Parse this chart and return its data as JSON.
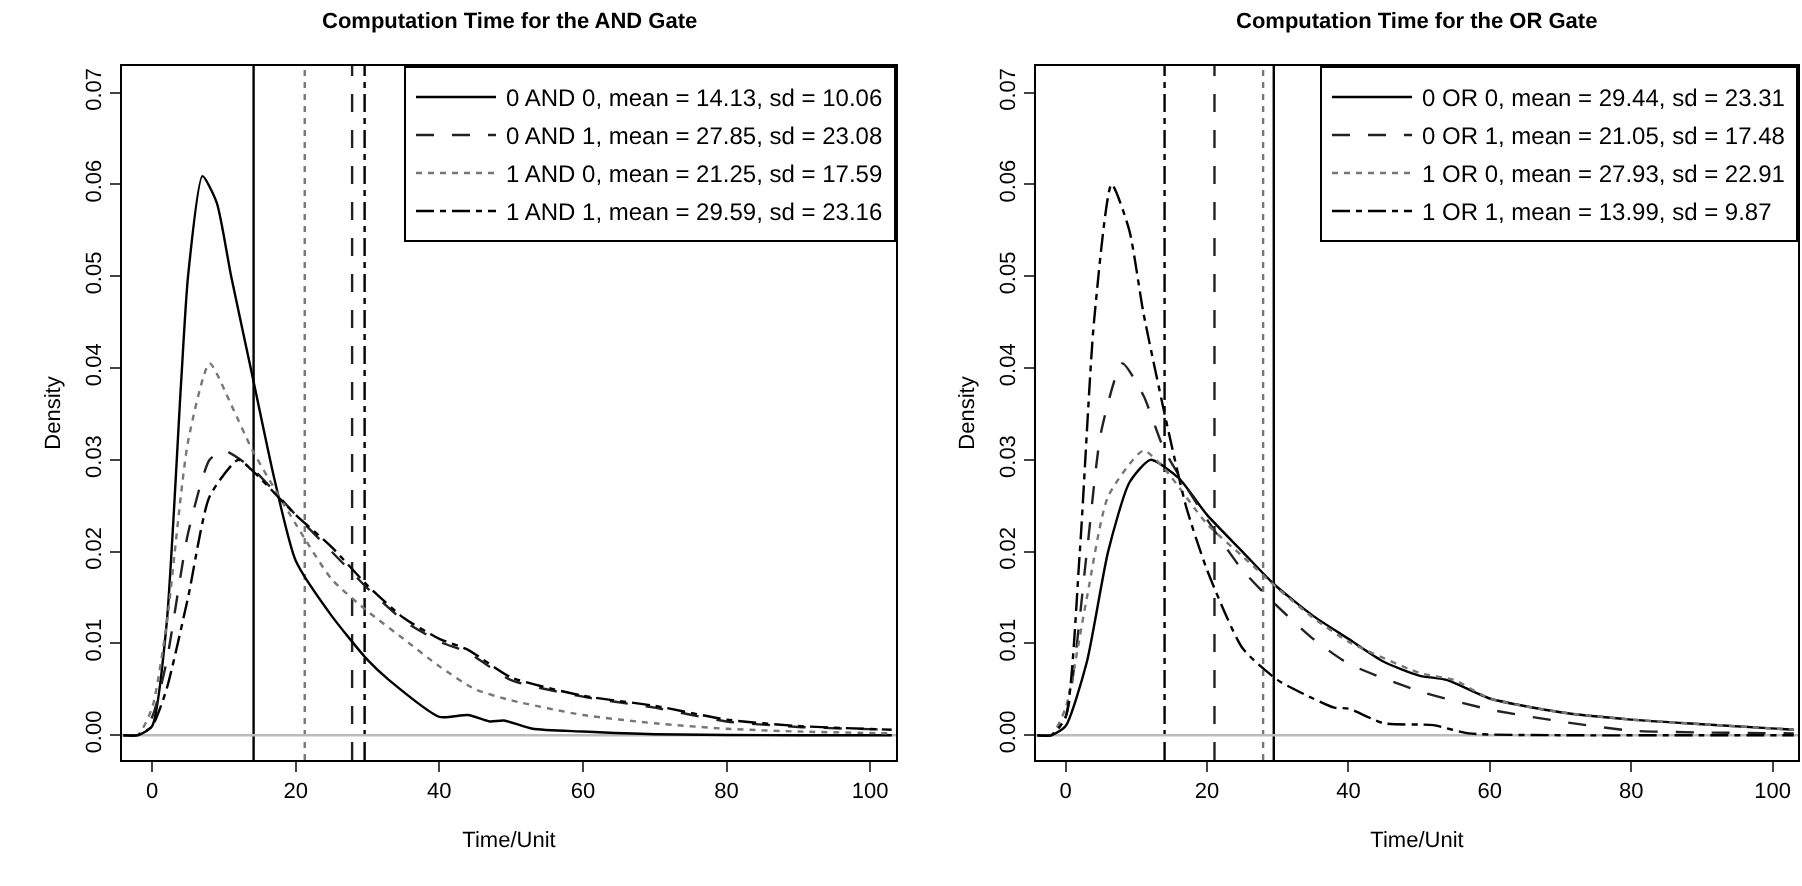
{
  "chart_data": [
    {
      "type": "line",
      "title": "Computation Time for the AND Gate",
      "xlabel": "Time/Unit",
      "ylabel": "Density",
      "legend": "top right",
      "grid": false,
      "xlim": [
        -4.2,
        103.6
      ],
      "ylim": [
        -0.0027,
        0.0729
      ],
      "xticks": [
        0,
        20,
        40,
        60,
        80,
        100
      ],
      "yticks": [
        {
          "value": 0,
          "label": "0.00"
        },
        {
          "value": 0.01,
          "label": "0.01"
        },
        {
          "value": 0.02,
          "label": "0.02"
        },
        {
          "value": 0.03,
          "label": "0.03"
        },
        {
          "value": 0.04,
          "label": "0.04"
        },
        {
          "value": 0.05,
          "label": "0.05"
        },
        {
          "value": 0.06,
          "label": "0.06"
        },
        {
          "value": 0.07,
          "label": "0.07"
        }
      ],
      "series": [
        {
          "name": "0 AND 0, mean = 14.13, sd = 10.06",
          "color": "#000000",
          "line_style": "solid",
          "x": [
            -4,
            -2,
            0,
            2,
            4,
            5,
            7,
            9,
            11,
            14,
            17,
            20,
            25,
            30,
            33,
            40,
            44,
            47,
            49,
            53,
            60,
            70,
            90,
            103
          ],
          "values": [
            0,
            0,
            0.001,
            0.012,
            0.038,
            0.05,
            0.0609,
            0.058,
            0.05,
            0.039,
            0.028,
            0.019,
            0.013,
            0.0082,
            0.006,
            0.002,
            0.0022,
            0.0015,
            0.0016,
            0.0007,
            0.0004,
            0.0001,
            0,
            0
          ]
        },
        {
          "name": "0 AND 1, mean = 27.85, sd = 23.08",
          "color": "#222222",
          "line_style": "dashed",
          "x": [
            -4,
            -2,
            0,
            2,
            5,
            8,
            10,
            14,
            20,
            25,
            30,
            35,
            40,
            44,
            50,
            60,
            70,
            80,
            90,
            103
          ],
          "values": [
            0,
            0,
            0.002,
            0.008,
            0.022,
            0.03,
            0.031,
            0.029,
            0.024,
            0.02,
            0.016,
            0.0125,
            0.0102,
            0.009,
            0.006,
            0.0042,
            0.003,
            0.0015,
            0.0009,
            0.0006
          ]
        },
        {
          "name": "1 AND 0, mean = 21.25, sd = 17.59",
          "color": "#777777",
          "line_style": "dotted",
          "x": [
            -4,
            -2,
            0,
            2,
            5,
            8,
            11,
            14,
            20,
            25,
            30,
            35,
            40,
            45,
            50,
            60,
            70,
            80,
            90,
            103
          ],
          "values": [
            0,
            0,
            0.003,
            0.012,
            0.032,
            0.0405,
            0.036,
            0.031,
            0.023,
            0.017,
            0.0135,
            0.0105,
            0.0075,
            0.005,
            0.0038,
            0.0022,
            0.0013,
            0.0007,
            0.0004,
            0.0002
          ]
        },
        {
          "name": "1 AND 1, mean = 29.59, sd = 23.16",
          "color": "#000000",
          "line_style": "dashdot",
          "x": [
            -4,
            -2,
            0,
            2,
            5,
            8,
            12,
            14,
            20,
            25,
            30,
            35,
            40,
            44,
            50,
            60,
            70,
            80,
            90,
            103
          ],
          "values": [
            0,
            0,
            0.001,
            0.005,
            0.015,
            0.026,
            0.03,
            0.0288,
            0.024,
            0.0205,
            0.0163,
            0.0128,
            0.0105,
            0.0093,
            0.0063,
            0.0043,
            0.0032,
            0.0017,
            0.001,
            0.0006
          ]
        }
      ],
      "ref_lines": [
        {
          "axis": "x",
          "value": 14.13,
          "color": "#000000",
          "line_style": "solid"
        },
        {
          "axis": "x",
          "value": 27.85,
          "color": "#222222",
          "line_style": "dashed"
        },
        {
          "axis": "x",
          "value": 21.25,
          "color": "#777777",
          "line_style": "dotted"
        },
        {
          "axis": "x",
          "value": 29.59,
          "color": "#000000",
          "line_style": "dashdot"
        },
        {
          "axis": "y",
          "value": 0,
          "color": "#bbbbbb",
          "line_style": "solid"
        }
      ]
    },
    {
      "type": "line",
      "title": "Computation Time for the OR Gate",
      "xlabel": "Time/Unit",
      "ylabel": "Density",
      "legend": "top right",
      "grid": false,
      "xlim": [
        -4.2,
        103.6
      ],
      "ylim": [
        -0.0027,
        0.0729
      ],
      "xticks": [
        0,
        20,
        40,
        60,
        80,
        100
      ],
      "yticks": [
        {
          "value": 0,
          "label": "0.00"
        },
        {
          "value": 0.01,
          "label": "0.01"
        },
        {
          "value": 0.02,
          "label": "0.02"
        },
        {
          "value": 0.03,
          "label": "0.03"
        },
        {
          "value": 0.04,
          "label": "0.04"
        },
        {
          "value": 0.05,
          "label": "0.05"
        },
        {
          "value": 0.06,
          "label": "0.06"
        },
        {
          "value": 0.07,
          "label": "0.07"
        }
      ],
      "series": [
        {
          "name": "0 OR 0, mean = 29.44, sd = 23.31",
          "color": "#000000",
          "line_style": "solid",
          "x": [
            -4,
            -2,
            0,
            3,
            6,
            9,
            12,
            16,
            20,
            25,
            29.4,
            35,
            40,
            45,
            50,
            54,
            60,
            70,
            80,
            90,
            103
          ],
          "values": [
            0,
            0,
            0.001,
            0.008,
            0.02,
            0.0275,
            0.03,
            0.028,
            0.024,
            0.02,
            0.0165,
            0.013,
            0.0105,
            0.008,
            0.0065,
            0.006,
            0.004,
            0.0025,
            0.0017,
            0.0012,
            0.0006
          ]
        },
        {
          "name": "0 OR 1, mean = 21.05, sd = 17.48",
          "color": "#222222",
          "line_style": "dashed",
          "x": [
            -4,
            -2,
            0,
            3,
            5,
            8,
            11,
            14,
            20,
            25,
            30,
            35,
            40,
            50,
            60,
            70,
            80,
            90,
            103
          ],
          "values": [
            0,
            0,
            0.002,
            0.02,
            0.033,
            0.0405,
            0.037,
            0.031,
            0.0235,
            0.018,
            0.014,
            0.0105,
            0.0078,
            0.0048,
            0.0028,
            0.0015,
            0.0005,
            0.0003,
            0.0002
          ]
        },
        {
          "name": "1 OR 0, mean = 27.93, sd = 22.91",
          "color": "#777777",
          "line_style": "dotted",
          "x": [
            -4,
            -2,
            0,
            3,
            6,
            11,
            14,
            20,
            25,
            30,
            35,
            40,
            50,
            55,
            60,
            70,
            80,
            90,
            103
          ],
          "values": [
            0,
            0,
            0.003,
            0.015,
            0.026,
            0.031,
            0.029,
            0.023,
            0.0195,
            0.016,
            0.0128,
            0.0102,
            0.0068,
            0.006,
            0.004,
            0.0025,
            0.0017,
            0.0012,
            0.0006
          ]
        },
        {
          "name": "1 OR 1, mean = 13.99, sd = 9.87",
          "color": "#000000",
          "line_style": "dashdot",
          "x": [
            -4,
            -2,
            0,
            2,
            4,
            6.5,
            9,
            11,
            14,
            17,
            20,
            25,
            30,
            35,
            38,
            40,
            45,
            52,
            57,
            70,
            90,
            103
          ],
          "values": [
            0,
            0,
            0.002,
            0.02,
            0.045,
            0.06,
            0.055,
            0.046,
            0.035,
            0.025,
            0.018,
            0.0095,
            0.006,
            0.004,
            0.003,
            0.0029,
            0.0013,
            0.0011,
            0.0002,
            0,
            0,
            0
          ]
        }
      ],
      "ref_lines": [
        {
          "axis": "x",
          "value": 29.44,
          "color": "#000000",
          "line_style": "solid"
        },
        {
          "axis": "x",
          "value": 21.05,
          "color": "#222222",
          "line_style": "dashed"
        },
        {
          "axis": "x",
          "value": 27.93,
          "color": "#777777",
          "line_style": "dotted"
        },
        {
          "axis": "x",
          "value": 13.99,
          "color": "#000000",
          "line_style": "dashdot"
        },
        {
          "axis": "y",
          "value": 0,
          "color": "#bbbbbb",
          "line_style": "solid"
        }
      ]
    }
  ]
}
